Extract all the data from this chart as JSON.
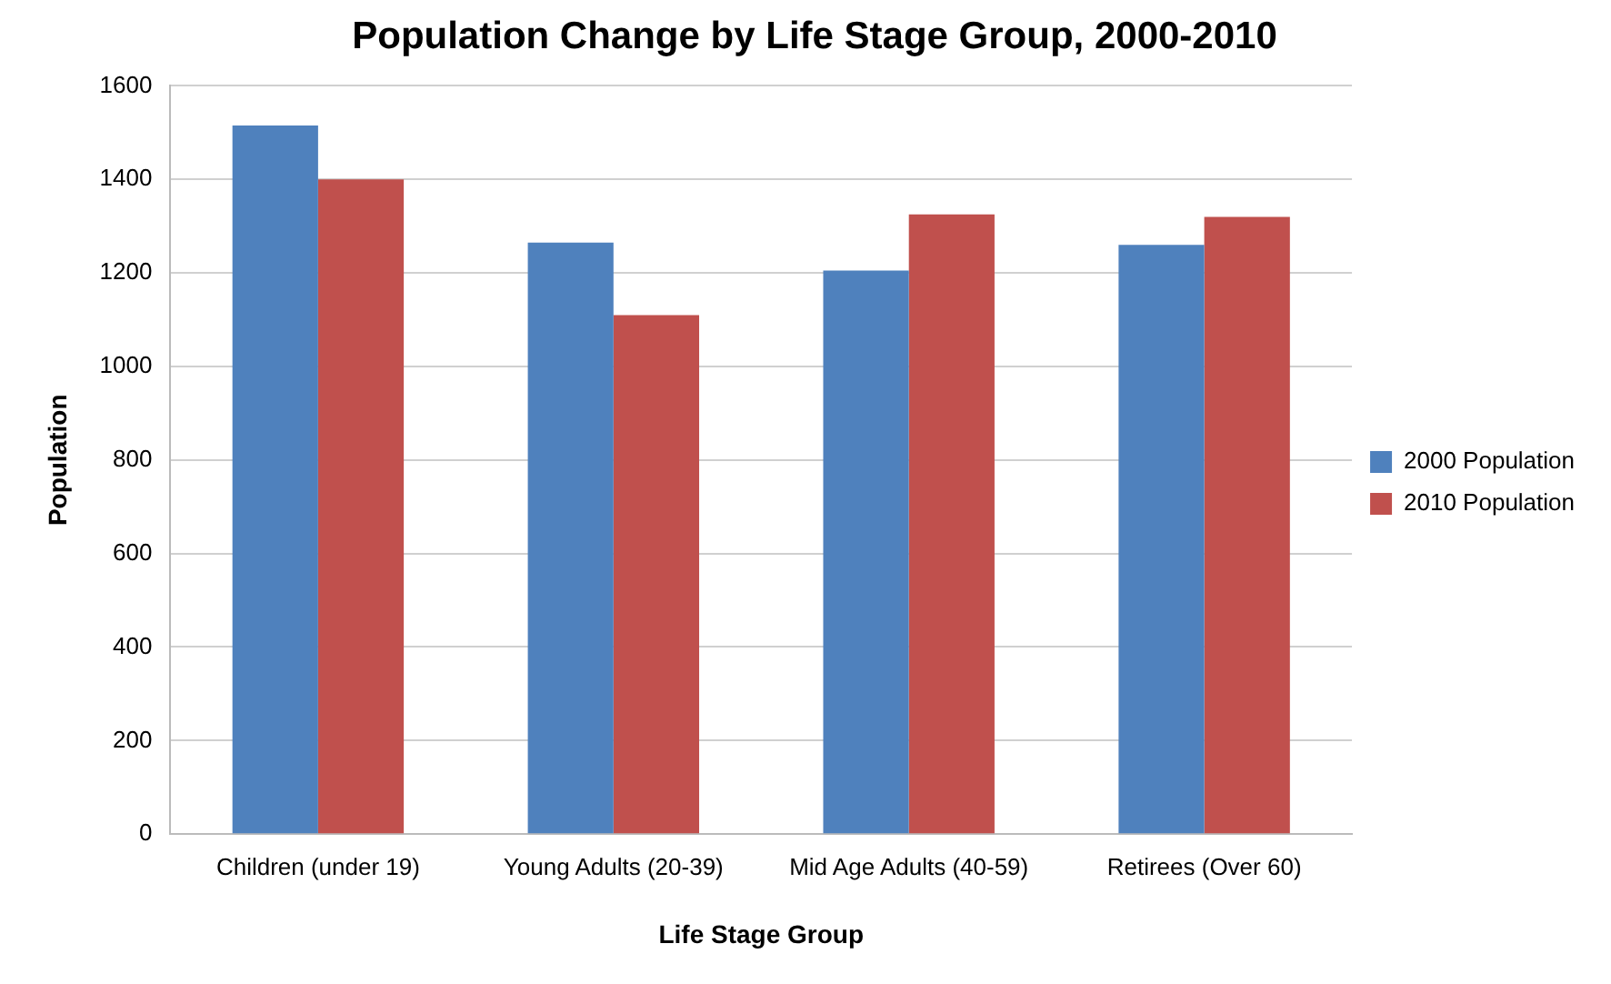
{
  "chart_data": {
    "type": "bar",
    "title": "Population Change by Life Stage Group, 2000-2010",
    "xlabel": "Life Stage Group",
    "ylabel": "Population",
    "categories": [
      "Children (under 19)",
      "Young Adults (20-39)",
      "Mid Age Adults (40-59)",
      "Retirees (Over 60)"
    ],
    "series": [
      {
        "name": "2000 Population",
        "color": "#4f81bd",
        "values": [
          1515,
          1265,
          1205,
          1260
        ]
      },
      {
        "name": "2010 Population",
        "color": "#c0504d",
        "values": [
          1400,
          1110,
          1325,
          1320
        ]
      }
    ],
    "ylim": [
      0,
      1600
    ],
    "yticks": [
      0,
      200,
      400,
      600,
      800,
      1000,
      1200,
      1400,
      1600
    ],
    "grid": "y",
    "legend": "right"
  }
}
